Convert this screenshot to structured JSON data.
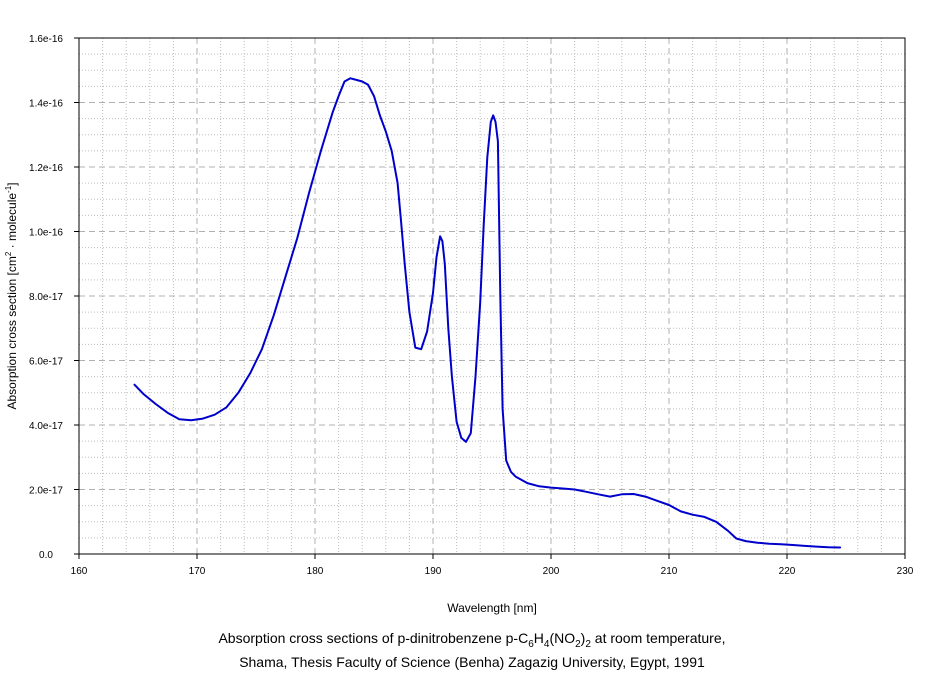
{
  "chart_data": {
    "type": "line",
    "title": "",
    "xlabel": "Wavelength [nm]",
    "ylabel": {
      "main": "Absorption cross section [cm",
      "sup1": "2",
      "middle": " · molecule",
      "sup2": "-1",
      "end": "]"
    },
    "xlim": [
      160,
      230
    ],
    "ylim": [
      0,
      1.6e-16
    ],
    "x_ticks": [
      160,
      170,
      180,
      190,
      200,
      210,
      220,
      230
    ],
    "x_tick_labels": [
      "160",
      "170",
      "180",
      "190",
      "200",
      "210",
      "220",
      "230"
    ],
    "y_ticks": [
      0,
      2e-17,
      4e-17,
      6e-17,
      8e-17,
      1e-16,
      1.2e-16,
      1.4e-16,
      1.6e-16
    ],
    "y_tick_labels": [
      "0.0",
      "2.0e-17",
      "4.0e-17",
      "6.0e-17",
      "8.0e-17",
      "1.0e-16",
      "1.2e-16",
      "1.4e-16",
      "1.6e-16"
    ],
    "grid": true,
    "series": [
      {
        "color": "#0000cc",
        "x": [
          164.7,
          165.5,
          166.5,
          167.5,
          168.5,
          169.5,
          170.5,
          171.5,
          172.5,
          173.5,
          174.5,
          175.5,
          176.5,
          177.5,
          178.5,
          179.5,
          180.5,
          181.5,
          182.0,
          182.5,
          183.0,
          183.5,
          184.0,
          184.5,
          185.0,
          185.5,
          186.0,
          186.5,
          187.0,
          187.3,
          187.6,
          188.0,
          188.5,
          189.0,
          189.5,
          190.0,
          190.3,
          190.6,
          190.8,
          191.0,
          191.3,
          191.6,
          192.0,
          192.4,
          192.8,
          193.2,
          193.6,
          194.0,
          194.3,
          194.6,
          194.9,
          195.1,
          195.3,
          195.5,
          195.7,
          195.9,
          196.2,
          196.6,
          197.0,
          198.0,
          199.0,
          200.0,
          201.0,
          202.0,
          203.0,
          204.0,
          205.0,
          206.0,
          207.0,
          208.0,
          209.0,
          210.0,
          211.0,
          212.0,
          213.0,
          214.0,
          215.0,
          215.7,
          216.5,
          217.5,
          218.5,
          219.5,
          220.5,
          221.5,
          222.5,
          223.5,
          224.5
        ],
        "y": [
          5.25e-17,
          4.95e-17,
          4.65e-17,
          4.38e-17,
          4.18e-17,
          4.15e-17,
          4.2e-17,
          4.32e-17,
          4.55e-17,
          5e-17,
          5.6e-17,
          6.35e-17,
          7.4e-17,
          8.6e-17,
          9.8e-17,
          1.12e-16,
          1.25e-16,
          1.37e-16,
          1.42e-16,
          1.465e-16,
          1.475e-16,
          1.47e-16,
          1.465e-16,
          1.455e-16,
          1.42e-16,
          1.36e-16,
          1.31e-16,
          1.25e-16,
          1.15e-16,
          1.03e-16,
          9e-17,
          7.5e-17,
          6.4e-17,
          6.35e-17,
          6.9e-17,
          8.1e-17,
          9.2e-17,
          9.85e-17,
          9.7e-17,
          9e-17,
          7e-17,
          5.5e-17,
          4.1e-17,
          3.6e-17,
          3.48e-17,
          3.75e-17,
          5.5e-17,
          7.8e-17,
          1.02e-16,
          1.23e-16,
          1.34e-16,
          1.36e-16,
          1.34e-16,
          1.28e-16,
          8e-17,
          4.5e-17,
          2.9e-17,
          2.55e-17,
          2.4e-17,
          2.2e-17,
          2.1e-17,
          2.06e-17,
          2.03e-17,
          2e-17,
          1.93e-17,
          1.85e-17,
          1.78e-17,
          1.85e-17,
          1.86e-17,
          1.78e-17,
          1.65e-17,
          1.52e-17,
          1.32e-17,
          1.22e-17,
          1.15e-17,
          1e-17,
          7.2e-18,
          4.8e-18,
          4e-18,
          3.5e-18,
          3.2e-18,
          3e-18,
          2.8e-18,
          2.5e-18,
          2.3e-18,
          2.1e-18,
          2e-18
        ]
      }
    ]
  },
  "caption": {
    "line1_pre": "Absorption cross sections of p-dinitrobenzene p-C",
    "sub1": "6",
    "mid1": "H",
    "sub2": "4",
    "mid2": "(NO",
    "sub3": "2",
    "mid3": ")",
    "sub4": "2",
    "line1_post": " at room temperature,",
    "line2": "Shama, Thesis Faculty of Science (Benha) Zagazig University, Egypt, 1991"
  }
}
